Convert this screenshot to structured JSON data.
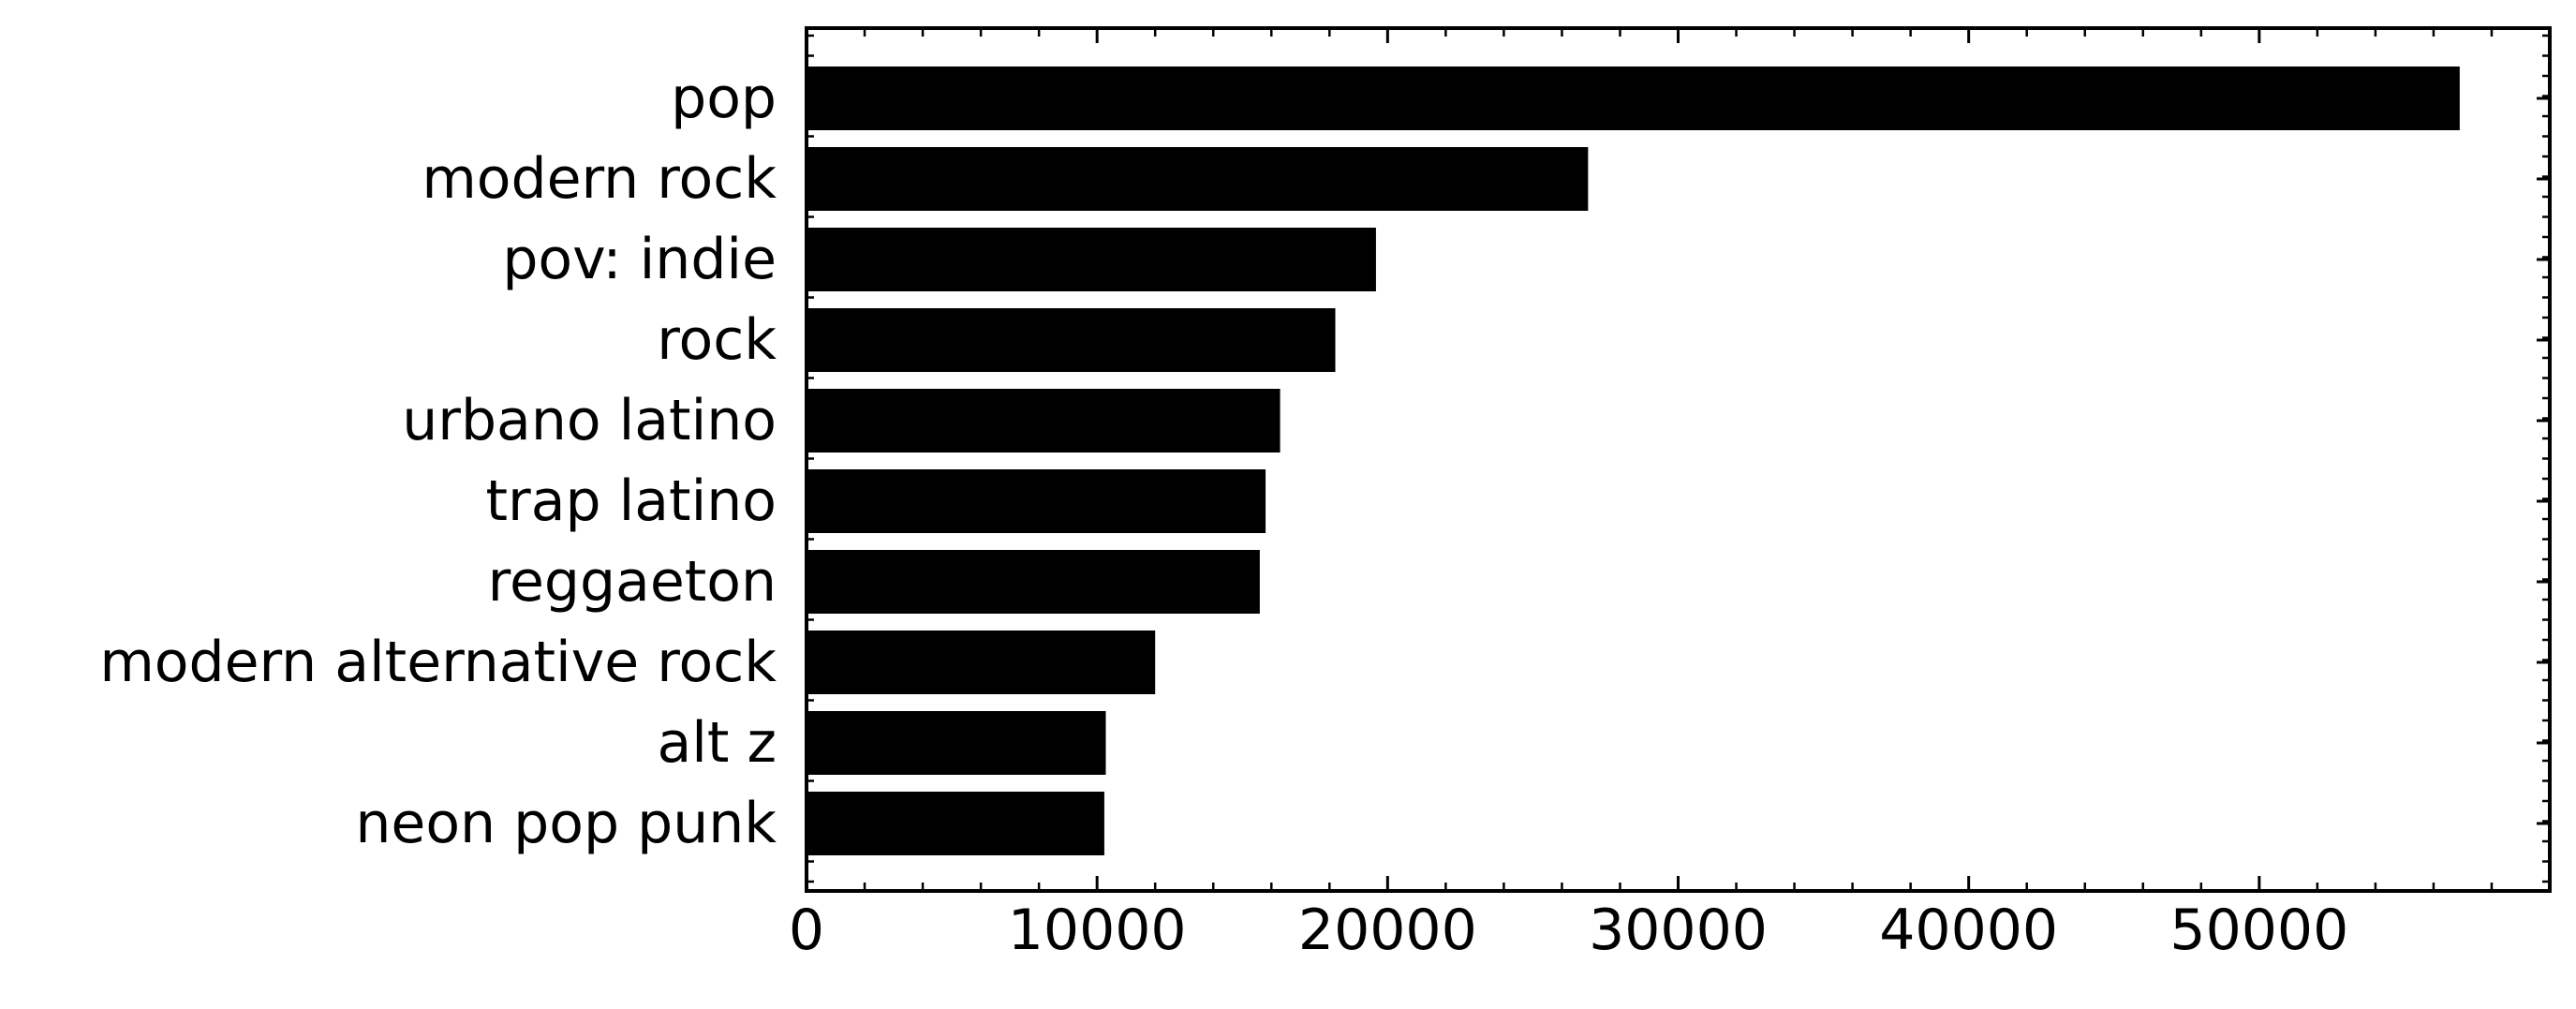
{
  "chart_data": {
    "type": "bar",
    "orientation": "horizontal",
    "categories": [
      "pop",
      "modern rock",
      "pov: indie",
      "rock",
      "urbano latino",
      "trap latino",
      "reggaeton",
      "modern alternative rock",
      "alt z",
      "neon pop punk"
    ],
    "values": [
      56900,
      26900,
      19600,
      18200,
      16300,
      15800,
      15600,
      12000,
      10300,
      10250
    ],
    "title": "",
    "xlabel": "",
    "ylabel": "",
    "xlim": [
      0,
      60000
    ],
    "xticks": [
      0,
      10000,
      20000,
      30000,
      40000,
      50000
    ],
    "xtick_labels": [
      "0",
      "10000",
      "20000",
      "30000",
      "40000",
      "50000"
    ],
    "grid": false,
    "bar_color": "#000000",
    "tick_direction": "in",
    "minor_ticks": true,
    "ticks_on_all_sides": true
  }
}
